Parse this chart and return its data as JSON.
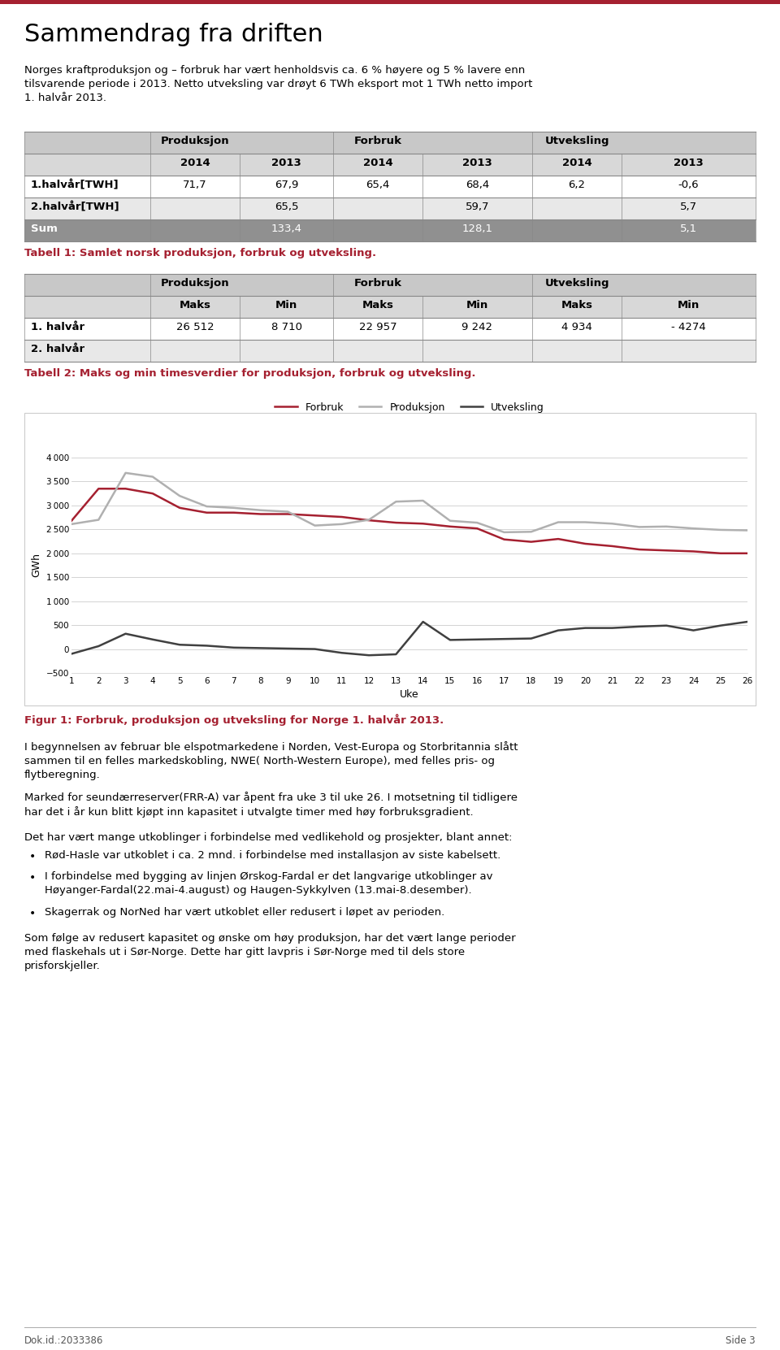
{
  "title": "Sammendrag fra driften",
  "intro_text": "Norges kraftproduksjon og – forbruk har vært henholdsvis ca. 6 % høyere og 5 % lavere enn\ntilsvarende periode i 2013. Netto utveksling var drøyt 6 TWh eksport mot 1 TWh netto import\n1. halvår 2013.",
  "table1_rows": [
    [
      "1.halvår[TWH]",
      "71,7",
      "67,9",
      "65,4",
      "68,4",
      "6,2",
      "-0,6"
    ],
    [
      "2.halvår[TWH]",
      "",
      "65,5",
      "",
      "59,7",
      "",
      "5,7"
    ]
  ],
  "table1_sum": [
    "Sum",
    "",
    "133,4",
    "",
    "128,1",
    "",
    "5,1"
  ],
  "table1_caption": "Tabell 1: Samlet norsk produksjon, forbruk og utveksling.",
  "table2_rows": [
    [
      "1. halvår",
      "26 512",
      "8 710",
      "22 957",
      "9 242",
      "4 934",
      "- 4274"
    ],
    [
      "2. halvår",
      "",
      "",
      "",
      "",
      "",
      ""
    ]
  ],
  "table2_caption": "Tabell 2: Maks og min timesverdier for produksjon, forbruk og utveksling.",
  "chart_xlabel": "Uke",
  "chart_ylabel": "GWh",
  "chart_yticks": [
    -500,
    0,
    500,
    1000,
    1500,
    2000,
    2500,
    3000,
    3500,
    4000
  ],
  "chart_xticks": [
    1,
    2,
    3,
    4,
    5,
    6,
    7,
    8,
    9,
    10,
    11,
    12,
    13,
    14,
    15,
    16,
    17,
    18,
    19,
    20,
    21,
    22,
    23,
    24,
    25,
    26
  ],
  "forbruk_color": "#a52030",
  "produksjon_color": "#b0b0b0",
  "utveksling_color": "#404040",
  "forbruk_data": [
    2680,
    3350,
    3350,
    3250,
    2950,
    2850,
    2850,
    2820,
    2820,
    2790,
    2760,
    2690,
    2640,
    2620,
    2560,
    2520,
    2290,
    2240,
    2300,
    2200,
    2150,
    2080,
    2060,
    2040,
    2000,
    2000
  ],
  "produksjon_data": [
    2610,
    2700,
    3680,
    3600,
    3200,
    2980,
    2950,
    2900,
    2870,
    2580,
    2610,
    2700,
    3080,
    3100,
    2680,
    2640,
    2440,
    2450,
    2650,
    2650,
    2620,
    2550,
    2560,
    2520,
    2490,
    2480
  ],
  "utveksling_data": [
    -100,
    60,
    320,
    200,
    90,
    70,
    30,
    20,
    10,
    0,
    -80,
    -130,
    -110,
    570,
    190,
    200,
    210,
    220,
    390,
    440,
    440,
    470,
    490,
    390,
    490,
    570
  ],
  "chart_caption": "Figur 1: Forbruk, produksjon og utveksling for Norge 1. halvår 2013.",
  "body_text1": "I begynnelsen av februar ble elspotmarkedene i Norden, Vest-Europa og Storbritannia slått\nsammen til en felles markedskobling, NWE( North-Western Europe), med felles pris- og\nflytberegning.",
  "body_text2": "Marked for seundærreserver(FRR-A) var åpent fra uke 3 til uke 26. I motsetning til tidligere\nhar det i år kun blitt kjøpt inn kapasitet i utvalgte timer med høy forbruksgradient.",
  "body_text3": "Det har vært mange utkoblinger i forbindelse med vedlikehold og prosjekter, blant annet:",
  "bullets": [
    "Rød-Hasle var utkoblet i ca. 2 mnd. i forbindelse med installasjon av siste kabelsett.",
    "I forbindelse med bygging av linjen Ørskog-Fardal er det langvarige utkoblinger av\nHøyanger-Fardal(22.mai-4.august) og Haugen-Sykkylven (13.mai-8.desember).",
    "Skagerrak og NorNed har vært utkoblet eller redusert i løpet av perioden."
  ],
  "body_text4": "Som følge av redusert kapasitet og ønske om høy produksjon, har det vært lange perioder\nmed flaskehals ut i Sør-Norge. Dette har gitt lavpris i Sør-Norge med til dels store\nprisforskjeller.",
  "footer_left": "Dok.id.:2033386",
  "footer_right": "Side 3",
  "header_line_color": "#a52030",
  "caption_color": "#a52030",
  "table_header_bg": "#c8c8c8",
  "table_subheader_bg": "#d8d8d8",
  "table_alt_bg": "#e8e8e8",
  "table_sum_bg": "#909090"
}
